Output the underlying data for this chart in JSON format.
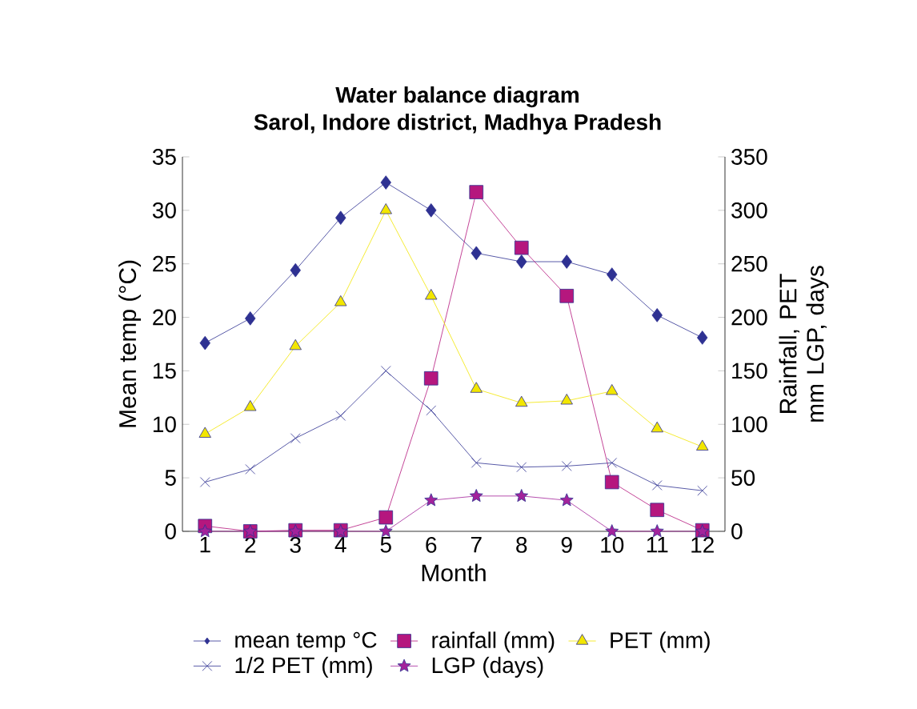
{
  "chart_data": {
    "type": "line",
    "title": "Water balance diagram",
    "subtitle": "Sarol, Indore district, Madhya Pradesh",
    "xlabel": "Month",
    "ylabel": "Mean temp (°C)",
    "y2label": "Rainfall, PET mm LGP, days",
    "categories": [
      "1",
      "2",
      "3",
      "4",
      "5",
      "6",
      "7",
      "8",
      "9",
      "10",
      "11",
      "12"
    ],
    "ylim": [
      0,
      35
    ],
    "yticks": [
      0,
      5,
      10,
      15,
      20,
      25,
      30,
      35
    ],
    "y2lim": [
      0,
      350
    ],
    "y2ticks": [
      0,
      50,
      100,
      150,
      200,
      250,
      300,
      350
    ],
    "legend": "bottom",
    "grid": false,
    "series": [
      {
        "name": "mean temp °C",
        "color": "#2e3192",
        "marker": "diamond",
        "values": [
          17.6,
          19.9,
          24.4,
          29.3,
          32.6,
          30.0,
          26.0,
          25.2,
          25.2,
          24.0,
          20.2,
          18.1
        ]
      },
      {
        "name": "rainfall (mm)",
        "color": "#b5177e",
        "marker": "square",
        "axis": "y2",
        "values": [
          5,
          0,
          1,
          1,
          13,
          143,
          317,
          265,
          220,
          46,
          20,
          1
        ]
      },
      {
        "name": "PET (mm)",
        "color": "#f2e600",
        "marker": "triangle",
        "axis": "y2",
        "values": [
          91,
          116,
          173,
          214,
          300,
          220,
          133,
          120,
          122,
          131,
          96,
          79
        ]
      },
      {
        "name": "1/2 PET (mm)",
        "color": "#2e3192",
        "marker": "cross",
        "axis": "y2",
        "values": [
          46,
          58,
          87,
          108,
          150,
          113,
          64,
          60,
          61,
          64,
          43,
          38
        ]
      },
      {
        "name": "LGP (days)",
        "color": "#a3239b",
        "marker": "star",
        "axis": "y2",
        "values": [
          0,
          0,
          0,
          0,
          0,
          29,
          33,
          33,
          29,
          0,
          0,
          0
        ]
      }
    ]
  }
}
